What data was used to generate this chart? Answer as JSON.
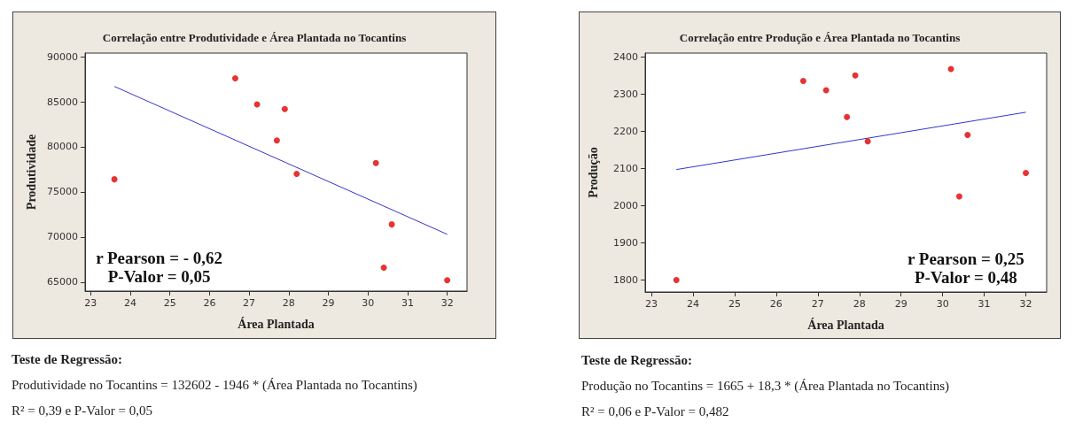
{
  "chart_data": [
    {
      "type": "scatter",
      "title": "Correlação entre Produtividade e Área Plantada no Tocantins",
      "xlabel": "Área Plantada",
      "ylabel": "Produtividade",
      "annotations": [
        "r Pearson = - 0,62",
        "P-Valor = 0,05",
        "Teste de Regressão:",
        "Produtividade no Tocantins = 132602 - 1946 * (Área Plantada no Tocantins)",
        "R² = 0,39 e P-Valor = 0,05"
      ],
      "series": [
        {
          "color": "#e00000",
          "marker": "circle",
          "x": [
            23.6,
            26.65,
            27.2,
            27.7,
            27.9,
            28.2,
            30.2,
            30.4,
            30.6,
            32.0
          ],
          "values": [
            76400,
            87600,
            84700,
            80700,
            84200,
            77000,
            78200,
            66600,
            71400,
            65200
          ]
        },
        {
          "type": "line",
          "color": "#3333cc",
          "marker": "none",
          "line_style": "solid",
          "x": [
            23.6,
            32.0
          ],
          "values": [
            86700,
            70300
          ]
        }
      ],
      "xlim": [
        22.86,
        32.5
      ],
      "xticks": [
        23,
        24,
        25,
        26,
        27,
        28,
        29,
        30,
        31,
        32
      ],
      "ylim": [
        64000,
        90400
      ],
      "yticks": [
        65000,
        70000,
        75000,
        80000,
        85000,
        90000
      ],
      "grid": false
    },
    {
      "type": "scatter",
      "title": "Correlação entre Produção e Área Plantada no Tocantins",
      "xlabel": "Área Plantada",
      "ylabel": "Produção",
      "annotations": [
        "r Pearson = 0,25",
        "P-Valor = 0,48",
        "Teste de Regressão:",
        "Produção no Tocantins = 1665 + 18,3 * (Área Plantada no Tocantins)",
        "R² = 0,06 e P-Valor = 0,482"
      ],
      "series": [
        {
          "color": "#e00000",
          "marker": "circle",
          "x": [
            23.6,
            26.65,
            27.2,
            27.7,
            27.9,
            28.2,
            30.2,
            30.4,
            30.6,
            32.0
          ],
          "values": [
            1800,
            2335,
            2310,
            2238,
            2350,
            2173,
            2367,
            2025,
            2190,
            2088
          ]
        },
        {
          "type": "line",
          "color": "#3333cc",
          "marker": "none",
          "line_style": "solid",
          "x": [
            23.6,
            32.0
          ],
          "values": [
            2097,
            2251
          ]
        }
      ],
      "xlim": [
        22.85,
        32.5
      ],
      "xticks": [
        23,
        24,
        25,
        26,
        27,
        28,
        29,
        30,
        31,
        32
      ],
      "ylim": [
        1768,
        2410
      ],
      "yticks": [
        1800,
        1900,
        2000,
        2100,
        2200,
        2300,
        2400
      ],
      "grid": false
    }
  ]
}
